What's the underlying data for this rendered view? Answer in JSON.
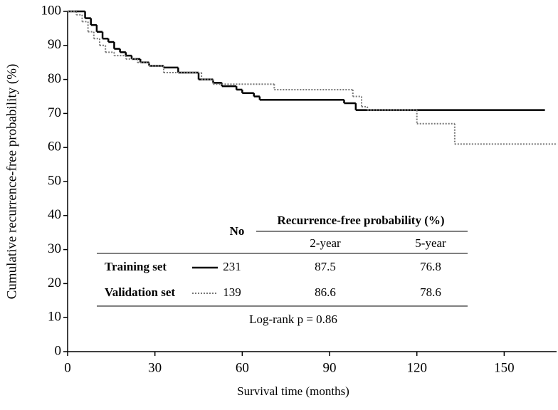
{
  "chart_data": {
    "type": "step",
    "x_label": "Survival time (months)",
    "y_label": "Cumulative recurrence-free probability (%)",
    "xlim": [
      0,
      168
    ],
    "ylim": [
      0,
      100
    ],
    "xticks": [
      0,
      30,
      60,
      90,
      120,
      150
    ],
    "yticks": [
      0,
      10,
      20,
      30,
      40,
      50,
      60,
      70,
      80,
      90,
      100
    ],
    "series": [
      {
        "name": "Training set",
        "color": "#000000",
        "dash": "solid",
        "n": 231,
        "two_year": 87.5,
        "five_year": 76.8,
        "x": [
          0,
          4,
          6,
          8,
          10,
          12,
          14,
          16,
          18,
          20,
          22,
          25,
          28,
          33,
          38,
          45,
          50,
          53,
          58,
          60,
          64,
          66,
          95,
          99,
          164
        ],
        "values": [
          100,
          100,
          98,
          96,
          94,
          92,
          91,
          89,
          88,
          87,
          86,
          85,
          84,
          83.5,
          82,
          80,
          79,
          78,
          77,
          76,
          75,
          74,
          73,
          71,
          71
        ]
      },
      {
        "name": "Validation set",
        "color": "#777777",
        "dash": "dotted",
        "n": 139,
        "two_year": 86.6,
        "five_year": 78.6,
        "x": [
          0,
          3,
          5,
          7,
          9,
          11,
          13,
          16,
          20,
          24,
          28,
          33,
          46,
          50,
          71,
          98,
          101,
          103,
          120,
          133,
          168
        ],
        "values": [
          100,
          99,
          97,
          94,
          92,
          90,
          88,
          87,
          86,
          85,
          84,
          82,
          80,
          78.6,
          77,
          75,
          72,
          71,
          67,
          61,
          61
        ]
      }
    ],
    "table": {
      "n_header": "No",
      "header": "Recurrence-free probability (%)",
      "col1": "2-year",
      "col2": "5-year",
      "note": "Log-rank p = 0.86"
    }
  }
}
